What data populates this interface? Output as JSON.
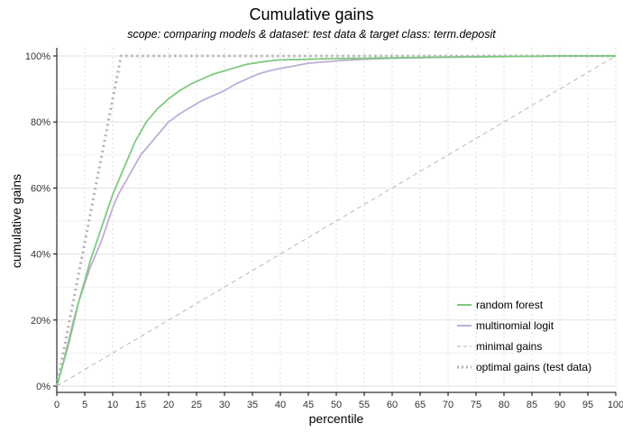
{
  "chart_data": {
    "type": "line",
    "title": "Cumulative gains",
    "subtitle": "scope: comparing models & dataset: test data & target class: term.deposit",
    "xlabel": "percentile",
    "ylabel": "cumulative gains",
    "xlim": [
      0,
      100
    ],
    "ylim": [
      0,
      1
    ],
    "x_ticks": [
      "0",
      "5",
      "10",
      "15",
      "20",
      "25",
      "30",
      "35",
      "40",
      "45",
      "50",
      "55",
      "60",
      "65",
      "70",
      "75",
      "80",
      "85",
      "90",
      "95",
      "100"
    ],
    "y_ticks": [
      "0%",
      "20%",
      "40%",
      "60%",
      "80%",
      "100%"
    ],
    "grid": true,
    "legend_position": "bottom-right",
    "series": [
      {
        "name": "random forest",
        "color": "#7fc97f",
        "style": "solid",
        "x": [
          0,
          1,
          2,
          3,
          4,
          5,
          6,
          7,
          8,
          9,
          10,
          11,
          12,
          13,
          14,
          15,
          16,
          17,
          18,
          19,
          20,
          22,
          24,
          26,
          28,
          30,
          32,
          34,
          36,
          38,
          40,
          45,
          50,
          55,
          60,
          65,
          70,
          75,
          80,
          85,
          90,
          95,
          100
        ],
        "y": [
          0,
          0.06,
          0.12,
          0.19,
          0.26,
          0.32,
          0.38,
          0.43,
          0.48,
          0.53,
          0.58,
          0.62,
          0.66,
          0.7,
          0.74,
          0.77,
          0.8,
          0.82,
          0.84,
          0.855,
          0.87,
          0.895,
          0.915,
          0.93,
          0.945,
          0.955,
          0.965,
          0.975,
          0.98,
          0.985,
          0.988,
          0.99,
          0.992,
          0.993,
          0.994,
          0.995,
          0.996,
          0.997,
          0.998,
          0.999,
          1.0,
          1.0,
          1.0
        ]
      },
      {
        "name": "multinomial logit",
        "color": "#beaed4",
        "style": "solid",
        "x": [
          0,
          1,
          2,
          3,
          4,
          5,
          6,
          7,
          8,
          9,
          10,
          11,
          12,
          13,
          14,
          15,
          16,
          17,
          18,
          19,
          20,
          22,
          24,
          26,
          28,
          30,
          32,
          34,
          36,
          38,
          40,
          45,
          50,
          55,
          60,
          65,
          70,
          75,
          80,
          85,
          90,
          95,
          100
        ],
        "y": [
          0,
          0.06,
          0.13,
          0.2,
          0.26,
          0.31,
          0.36,
          0.4,
          0.44,
          0.49,
          0.54,
          0.58,
          0.61,
          0.64,
          0.67,
          0.7,
          0.72,
          0.74,
          0.76,
          0.78,
          0.8,
          0.825,
          0.845,
          0.865,
          0.88,
          0.895,
          0.915,
          0.93,
          0.945,
          0.955,
          0.962,
          0.978,
          0.985,
          0.99,
          0.993,
          0.995,
          0.997,
          0.998,
          0.999,
          0.999,
          1.0,
          1.0,
          1.0
        ]
      },
      {
        "name": "minimal gains",
        "color": "#b0b0b0",
        "style": "dashed",
        "x": [
          0,
          100
        ],
        "y": [
          0,
          1
        ]
      },
      {
        "name": "optimal gains (test data)",
        "color": "#b0b0b0",
        "style": "dotted",
        "x": [
          0,
          11.5,
          100
        ],
        "y": [
          0,
          1,
          1
        ]
      }
    ]
  }
}
